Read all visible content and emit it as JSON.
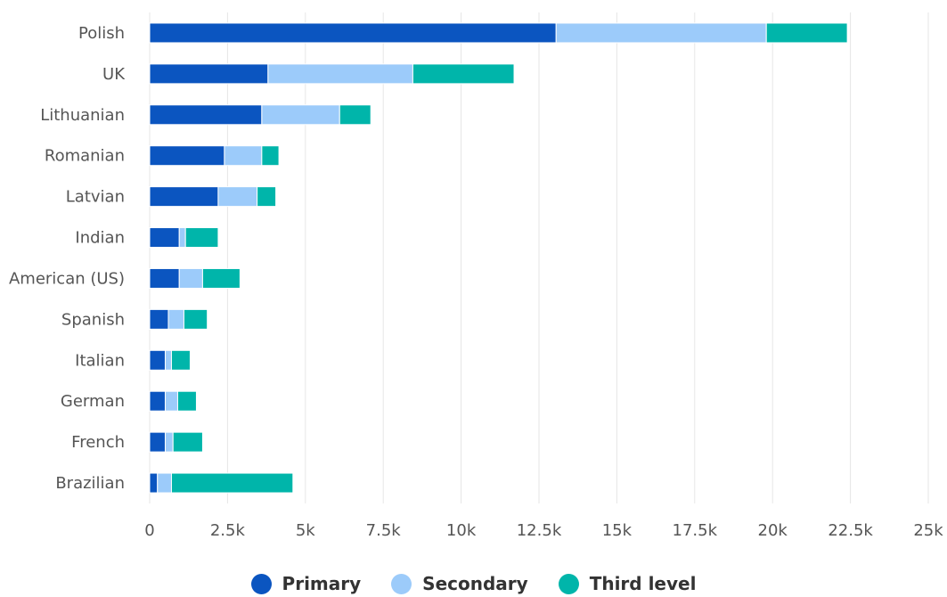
{
  "chart_data": {
    "type": "bar",
    "orientation": "horizontal",
    "stacked": true,
    "categories": [
      "Polish",
      "UK",
      "Lithuanian",
      "Romanian",
      "Latvian",
      "Indian",
      "American (US)",
      "Spanish",
      "Italian",
      "German",
      "French",
      "Brazilian"
    ],
    "series": [
      {
        "name": "Primary",
        "color": "#0b55c0",
        "values": [
          13050,
          3800,
          3600,
          2400,
          2200,
          950,
          950,
          600,
          500,
          500,
          500,
          250
        ]
      },
      {
        "name": "Secondary",
        "color": "#9ccbfa",
        "values": [
          6750,
          4650,
          2500,
          1200,
          1250,
          200,
          750,
          500,
          200,
          400,
          250,
          450
        ]
      },
      {
        "name": "Third level",
        "color": "#00b5aa",
        "values": [
          2600,
          3250,
          1000,
          550,
          600,
          1050,
          1200,
          750,
          600,
          600,
          950,
          3900
        ]
      }
    ],
    "xticks": [
      "0",
      "2.5k",
      "5k",
      "7.5k",
      "10k",
      "12.5k",
      "15k",
      "17.5k",
      "20k",
      "22.5k",
      "25k"
    ],
    "xlim": [
      0,
      25000
    ],
    "grid": "vertical",
    "legend": "bottom-center",
    "title": "",
    "xlabel": "",
    "ylabel": ""
  }
}
